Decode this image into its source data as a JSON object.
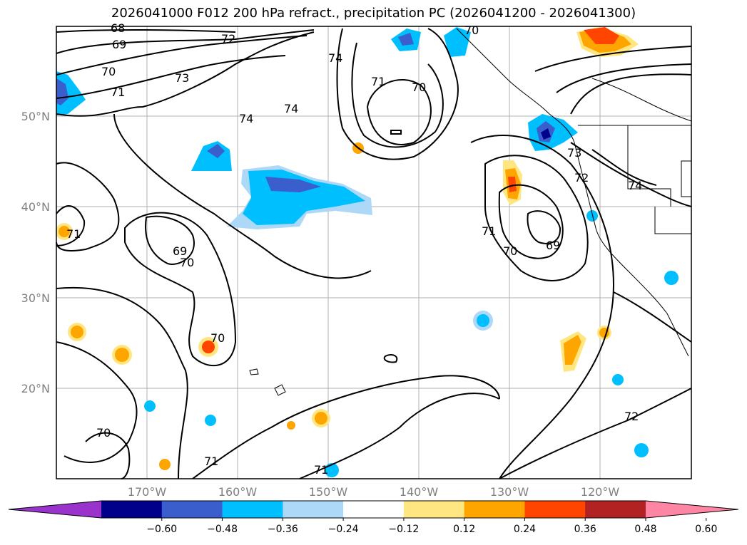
{
  "title": "2026041000 F012 200 hPa refract., precipitation PC (2026041200 - 2026041300)",
  "map": {
    "lat_labels": [
      "50°N",
      "40°N",
      "30°N",
      "20°N"
    ],
    "lon_labels": [
      "170°W",
      "160°W",
      "150°W",
      "140°W",
      "130°W",
      "120°W"
    ],
    "contour_labels": [
      "68",
      "69",
      "70",
      "71",
      "72",
      "73",
      "74",
      "74",
      "74",
      "71",
      "70",
      "70",
      "69",
      "71",
      "70",
      "69",
      "73",
      "72",
      "74",
      "71",
      "70",
      "70",
      "71",
      "72",
      "70",
      "71"
    ],
    "projection_hint": "mercator",
    "grid": true
  },
  "colorbar": {
    "ticks": [
      "−0.60",
      "−0.48",
      "−0.36",
      "−0.24",
      "−0.12",
      "0.12",
      "0.24",
      "0.36",
      "0.48",
      "0.60"
    ],
    "colors": [
      "#9933cc",
      "#00008b",
      "#3a5fcd",
      "#00bfff",
      "#add8f7",
      "#ffffff",
      "#ffe680",
      "#ffa500",
      "#ff4500",
      "#b22222",
      "#ff85a5"
    ]
  },
  "colors": {
    "grid": "#b0b0b0",
    "contour": "#000000",
    "coast": "#000000"
  }
}
